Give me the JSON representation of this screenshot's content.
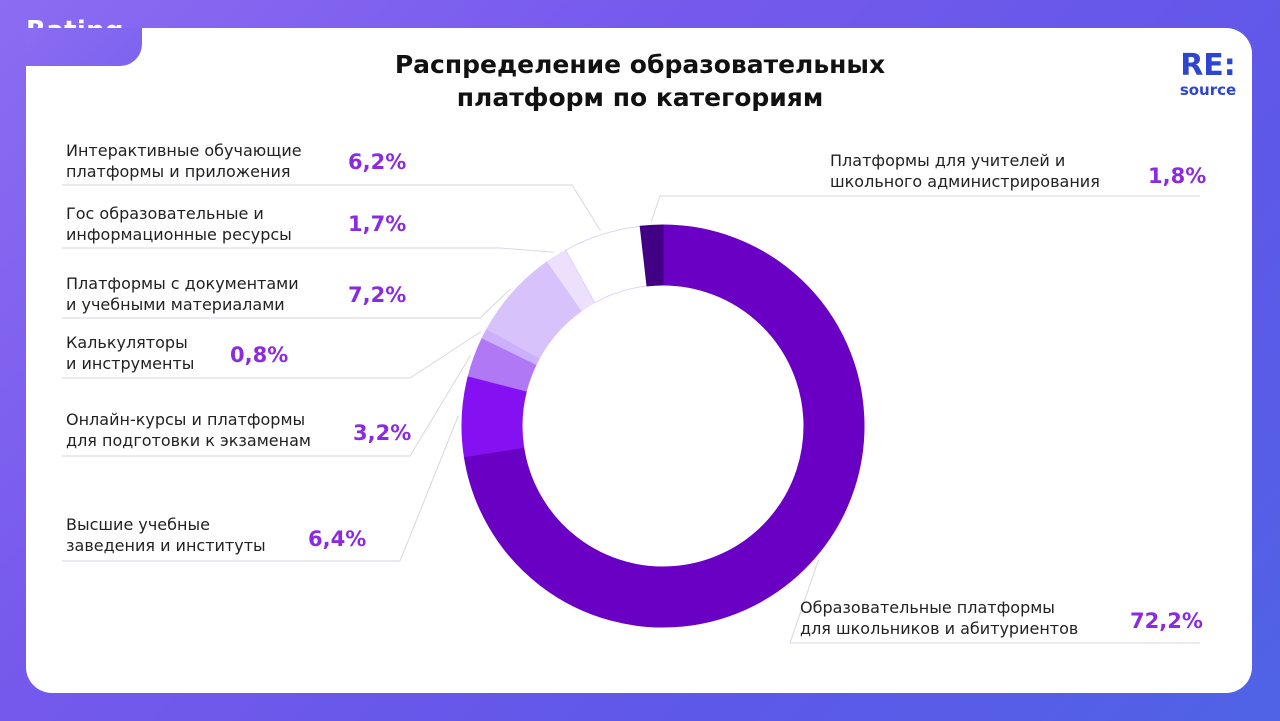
{
  "tab_label": "Rating",
  "logo": {
    "main": "RE:",
    "sub": "source"
  },
  "colors": {
    "accent_text": "#8a2be2",
    "logo": "#2d45cf",
    "slices": [
      "#6a00c4",
      "#8511f2",
      "#b078f5",
      "#cdb0fa",
      "#d8c2fb",
      "#ece0fd",
      "#ffffff",
      "#420085"
    ]
  },
  "chart_data": {
    "type": "pie",
    "title": "Распределение образовательных платформ по категориям",
    "title_lines": [
      "Распределение образовательных",
      "платформ по категориям"
    ],
    "unit": "%",
    "donut": true,
    "slices": [
      {
        "label_lines": [
          "Образовательные платформы",
          "для школьников и абитуриентов"
        ],
        "value": 72.2,
        "value_label": "72,2%",
        "color": "#6a00c4"
      },
      {
        "label_lines": [
          "Высшие учебные",
          "заведения и институты"
        ],
        "value": 6.4,
        "value_label": "6,4%",
        "color": "#8511f2"
      },
      {
        "label_lines": [
          "Онлайн-курсы и платформы",
          "для подготовки к экзаменам"
        ],
        "value": 3.2,
        "value_label": "3,2%",
        "color": "#b078f5"
      },
      {
        "label_lines": [
          "Калькуляторы",
          "и инструменты"
        ],
        "value": 0.8,
        "value_label": "0,8%",
        "color": "#cdb0fa"
      },
      {
        "label_lines": [
          "Платформы с документами",
          "и учебными материалами"
        ],
        "value": 7.2,
        "value_label": "7,2%",
        "color": "#d8c2fb"
      },
      {
        "label_lines": [
          "Гос образовательные и",
          "информационные ресурсы"
        ],
        "value": 1.7,
        "value_label": "1,7%",
        "color": "#ece0fd"
      },
      {
        "label_lines": [
          "Интерактивные обучающие",
          "платформы и приложения"
        ],
        "value": 6.2,
        "value_label": "6,2%",
        "color": "#ffffff"
      },
      {
        "label_lines": [
          "Платформы для учителей и",
          "школьного администрирования"
        ],
        "value": 1.8,
        "value_label": "1,8%",
        "color": "#420085"
      }
    ]
  }
}
